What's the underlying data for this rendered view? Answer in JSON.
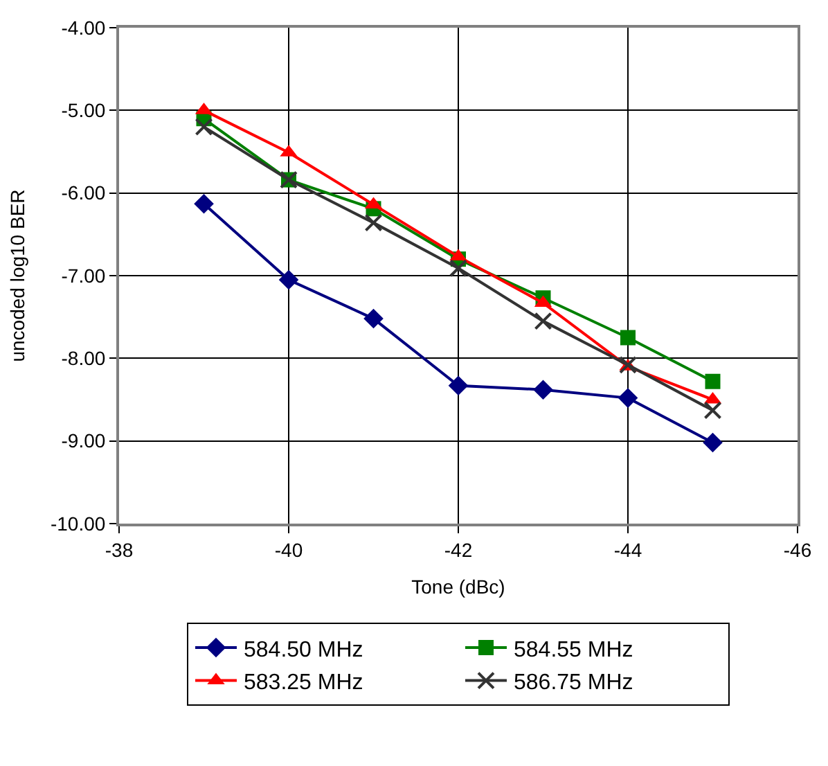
{
  "chart_data": {
    "type": "line",
    "xlabel": "Tone (dBc)",
    "ylabel": "uncoded log10 BER",
    "x": [
      -39,
      -40,
      -41,
      -42,
      -43,
      -44,
      -45
    ],
    "xlim": [
      -38,
      -46
    ],
    "xticks": [
      -38,
      -40,
      -42,
      -44,
      -46
    ],
    "ylim": [
      -10,
      -4
    ],
    "yticks": [
      {
        "value": -10,
        "label": "-10.00"
      },
      {
        "value": -9,
        "label": "-9.00"
      },
      {
        "value": -8,
        "label": "-8.00"
      },
      {
        "value": -7,
        "label": "-7.00"
      },
      {
        "value": -6,
        "label": "-6.00"
      },
      {
        "value": -5,
        "label": "-5.00"
      },
      {
        "value": -4,
        "label": "-4.00"
      }
    ],
    "grid": true,
    "legend": "bottom",
    "line_style": "solid",
    "series": [
      {
        "name": "584.50 MHz",
        "color": "#000080",
        "marker": "diamond",
        "values": [
          -6.13,
          -7.05,
          -7.52,
          -8.33,
          -8.38,
          -8.48,
          -9.02
        ]
      },
      {
        "name": "584.55 MHz",
        "color": "#008000",
        "marker": "square",
        "values": [
          -5.1,
          -5.84,
          -6.19,
          -6.8,
          -7.27,
          -7.75,
          -8.28
        ]
      },
      {
        "name": "583.25 MHz",
        "color": "#ff0000",
        "marker": "triangle",
        "values": [
          -5.0,
          -5.51,
          -6.14,
          -6.77,
          -7.33,
          -8.1,
          -8.5
        ]
      },
      {
        "name": "586.75 MHz",
        "color": "#333333",
        "marker": "cross",
        "values": [
          -5.2,
          -5.84,
          -6.36,
          -6.91,
          -7.55,
          -8.08,
          -8.63
        ]
      }
    ]
  }
}
